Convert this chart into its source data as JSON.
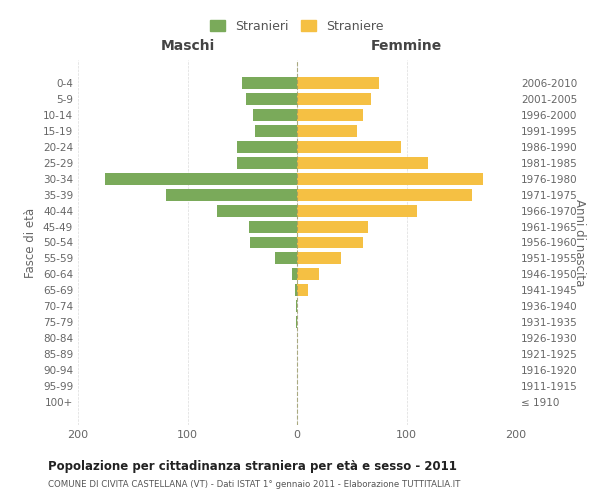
{
  "age_groups": [
    "100+",
    "95-99",
    "90-94",
    "85-89",
    "80-84",
    "75-79",
    "70-74",
    "65-69",
    "60-64",
    "55-59",
    "50-54",
    "45-49",
    "40-44",
    "35-39",
    "30-34",
    "25-29",
    "20-24",
    "15-19",
    "10-14",
    "5-9",
    "0-4"
  ],
  "birth_years": [
    "≤ 1910",
    "1911-1915",
    "1916-1920",
    "1921-1925",
    "1926-1930",
    "1931-1935",
    "1936-1940",
    "1941-1945",
    "1946-1950",
    "1951-1955",
    "1956-1960",
    "1961-1965",
    "1966-1970",
    "1971-1975",
    "1976-1980",
    "1981-1985",
    "1986-1990",
    "1991-1995",
    "1996-2000",
    "2001-2005",
    "2006-2010"
  ],
  "maschi": [
    0,
    0,
    0,
    0,
    0,
    1,
    1,
    2,
    5,
    20,
    43,
    44,
    73,
    120,
    175,
    55,
    55,
    38,
    40,
    47,
    50
  ],
  "femmine": [
    0,
    0,
    0,
    0,
    0,
    0,
    0,
    10,
    20,
    40,
    60,
    65,
    110,
    160,
    170,
    120,
    95,
    55,
    60,
    68,
    75
  ],
  "maschi_color": "#7aaa5a",
  "femmine_color": "#f5c043",
  "background_color": "#ffffff",
  "grid_color": "#cccccc",
  "title": "Popolazione per cittadinanza straniera per età e sesso - 2011",
  "subtitle": "COMUNE DI CIVITA CASTELLANA (VT) - Dati ISTAT 1° gennaio 2011 - Elaborazione TUTTITALIA.IT",
  "ylabel_left": "Fasce di età",
  "ylabel_right": "Anni di nascita",
  "xlabel_left": "Maschi",
  "xlabel_right": "Femmine",
  "legend_maschi": "Stranieri",
  "legend_femmine": "Straniere",
  "xlim": 200,
  "center_line_color": "#999966"
}
